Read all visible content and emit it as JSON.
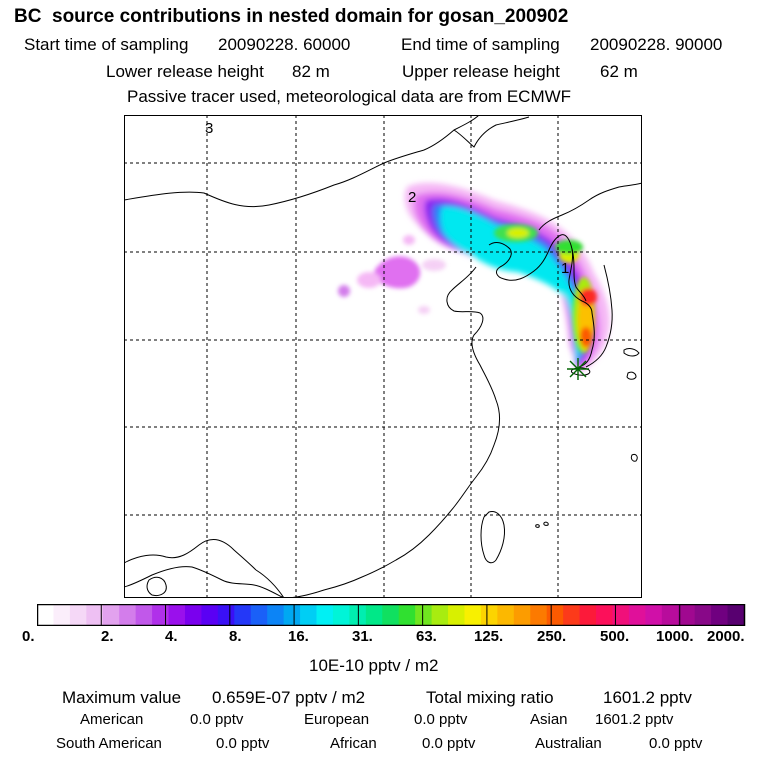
{
  "header": {
    "title": "BC  source contributions in nested domain for gosan_200902",
    "start_label": "Start time of sampling",
    "start_value": "20090228. 60000",
    "end_label": "End time of sampling",
    "end_value": "20090228. 90000",
    "lower_label": "Lower release height",
    "lower_value": "82 m",
    "upper_label": "Upper release height",
    "upper_value": "62 m",
    "note": "Passive tracer used, meteorological data are from ECMWF"
  },
  "map": {
    "markers": [
      {
        "label": "1",
        "lon": 130.2,
        "lat": 37.3
      },
      {
        "label": "2",
        "lon": 116.7,
        "lat": 41.7
      },
      {
        "label": "3",
        "lon": 109.1,
        "lat": 52.1
      }
    ],
    "receptor": {
      "name": "gosan",
      "lon": 126.2,
      "lat": 33.3
    }
  },
  "colorbar": {
    "unit": "10E-10 pptv / m2",
    "ticks": [
      "0.",
      "2.",
      "4.",
      "8.",
      "16.",
      "31.",
      "63.",
      "125.",
      "250.",
      "500.",
      "1000.",
      "2000."
    ],
    "colors": [
      "#ffffff",
      "#fbeefb",
      "#f5d8f7",
      "#eec0f3",
      "#e2a2ee",
      "#d37deb",
      "#c158ea",
      "#b030ea",
      "#9a10ec",
      "#7a00ee",
      "#5a00f4",
      "#3a10f6",
      "#2438f8",
      "#1a60f8",
      "#0c84f6",
      "#00a8f2",
      "#00cef4",
      "#00f0f4",
      "#00f4d8",
      "#00eeb0",
      "#00e888",
      "#10e060",
      "#30e030",
      "#70e620",
      "#a8ec10",
      "#d8f000",
      "#f8f000",
      "#fcd400",
      "#fcb800",
      "#fc9c00",
      "#fc7a00",
      "#fc5a00",
      "#fc3a1a",
      "#fc1a3a",
      "#fc105a",
      "#f0107a",
      "#e0109a",
      "#d010a8",
      "#b80c9c",
      "#a00890",
      "#880888",
      "#700080",
      "#580070"
    ]
  },
  "stats": {
    "max_label": "Maximum value",
    "max_value": "0.659E-07 pptv / m2",
    "total_label": "Total mixing ratio",
    "total_value": "1601.2 pptv",
    "regions": [
      {
        "name": "American",
        "value": "0.0 pptv"
      },
      {
        "name": "European",
        "value": "0.0 pptv"
      },
      {
        "name": "Asian",
        "value": "1601.2 pptv"
      },
      {
        "name": "South American",
        "value": "0.0 pptv"
      },
      {
        "name": "African",
        "value": "0.0 pptv"
      },
      {
        "name": "Australian",
        "value": "0.0 pptv"
      }
    ]
  }
}
